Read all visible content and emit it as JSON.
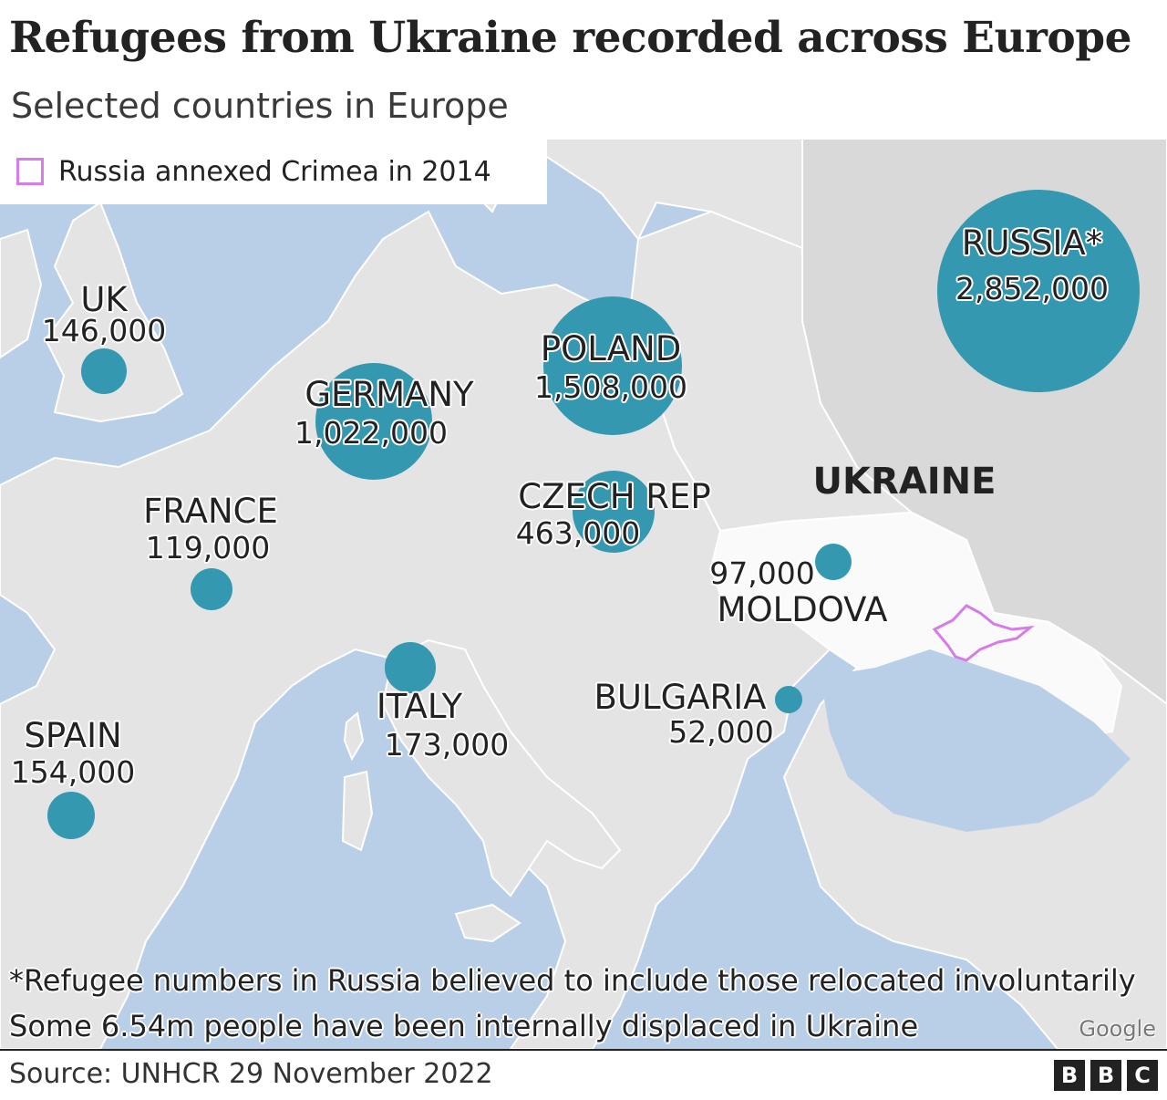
{
  "title": "Refugees from Ukraine recorded across Europe",
  "subtitle": "Selected countries in Europe",
  "legend": {
    "label": "Russia annexed Crimea in 2014",
    "swatch_color": "#d57ce8"
  },
  "map": {
    "colors": {
      "sea": "#b9cfe8",
      "land": "#e4e4e4",
      "russia_land": "#d9d9d9",
      "ukraine_land": "#fafafa",
      "bubble": "#3398b0",
      "crimea_outline": "#d57ce8"
    },
    "ukraine_label": "UKRAINE",
    "attribution": "Google"
  },
  "countries": [
    {
      "name": "RUSSIA*",
      "refugees": "2,852,000"
    },
    {
      "name": "POLAND",
      "refugees": "1,508,000"
    },
    {
      "name": "GERMANY",
      "refugees": "1,022,000"
    },
    {
      "name": "CZECH REP",
      "refugees": "463,000"
    },
    {
      "name": "ITALY",
      "refugees": "173,000"
    },
    {
      "name": "SPAIN",
      "refugees": "154,000"
    },
    {
      "name": "UK",
      "refugees": "146,000"
    },
    {
      "name": "FRANCE",
      "refugees": "119,000"
    },
    {
      "name": "MOLDOVA",
      "refugees": "97,000"
    },
    {
      "name": "BULGARIA",
      "refugees": "52,000"
    }
  ],
  "notes": [
    "*Refugee numbers in Russia believed to include those relocated involuntarily",
    "Some 6.54m people have been internally displaced in Ukraine"
  ],
  "source": "Source: UNHCR 29 November 2022",
  "logo": [
    "B",
    "B",
    "C"
  ]
}
